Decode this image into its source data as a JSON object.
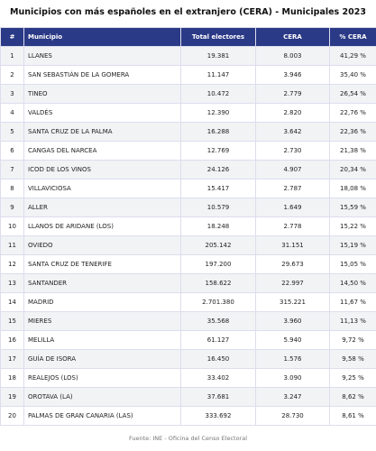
{
  "title": "Municipios con más españoles en el extranjero (CERA) - Municipales 2023",
  "table": {
    "headers": [
      "#",
      "Municipio",
      "Total electores",
      "CERA",
      "% CERA"
    ],
    "rows": [
      [
        "1",
        "LLANES",
        "19.381",
        "8.003",
        "41,29 %"
      ],
      [
        "2",
        "SAN SEBASTIÁN DE LA GOMERA",
        "11.147",
        "3.946",
        "35,40 %"
      ],
      [
        "3",
        "TINEO",
        "10.472",
        "2.779",
        "26,54 %"
      ],
      [
        "4",
        "VALDÉS",
        "12.390",
        "2.820",
        "22,76 %"
      ],
      [
        "5",
        "SANTA CRUZ DE LA PALMA",
        "16.288",
        "3.642",
        "22,36 %"
      ],
      [
        "6",
        "CANGAS DEL NARCEA",
        "12.769",
        "2.730",
        "21,38 %"
      ],
      [
        "7",
        "ICOD DE LOS VINOS",
        "24.126",
        "4.907",
        "20,34 %"
      ],
      [
        "8",
        "VILLAVICIOSA",
        "15.417",
        "2.787",
        "18,08 %"
      ],
      [
        "9",
        "ALLER",
        "10.579",
        "1.649",
        "15,59 %"
      ],
      [
        "10",
        "LLANOS DE ARIDANE (LOS)",
        "18.248",
        "2.778",
        "15,22 %"
      ],
      [
        "11",
        "OVIEDO",
        "205.142",
        "31.151",
        "15,19 %"
      ],
      [
        "12",
        "SANTA CRUZ DE TENERIFE",
        "197.200",
        "29.673",
        "15,05 %"
      ],
      [
        "13",
        "SANTANDER",
        "158.622",
        "22.997",
        "14,50 %"
      ],
      [
        "14",
        "MADRID",
        "2.701.380",
        "315.221",
        "11,67 %"
      ],
      [
        "15",
        "MIERES",
        "35.568",
        "3.960",
        "11,13 %"
      ],
      [
        "16",
        "MELILLA",
        "61.127",
        "5.940",
        "9,72 %"
      ],
      [
        "17",
        "GUÍA DE ISORA",
        "16.450",
        "1.576",
        "9,58 %"
      ],
      [
        "18",
        "REALEJOS (LOS)",
        "33.402",
        "3.090",
        "9,25 %"
      ],
      [
        "19",
        "OROTAVA (LA)",
        "37.681",
        "3.247",
        "8,62 %"
      ],
      [
        "20",
        "PALMAS DE GRAN CANARIA (LAS)",
        "333.692",
        "28.730",
        "8,61 %"
      ]
    ]
  },
  "source": "Fuente: INE - Oficina del Censo Electoral"
}
